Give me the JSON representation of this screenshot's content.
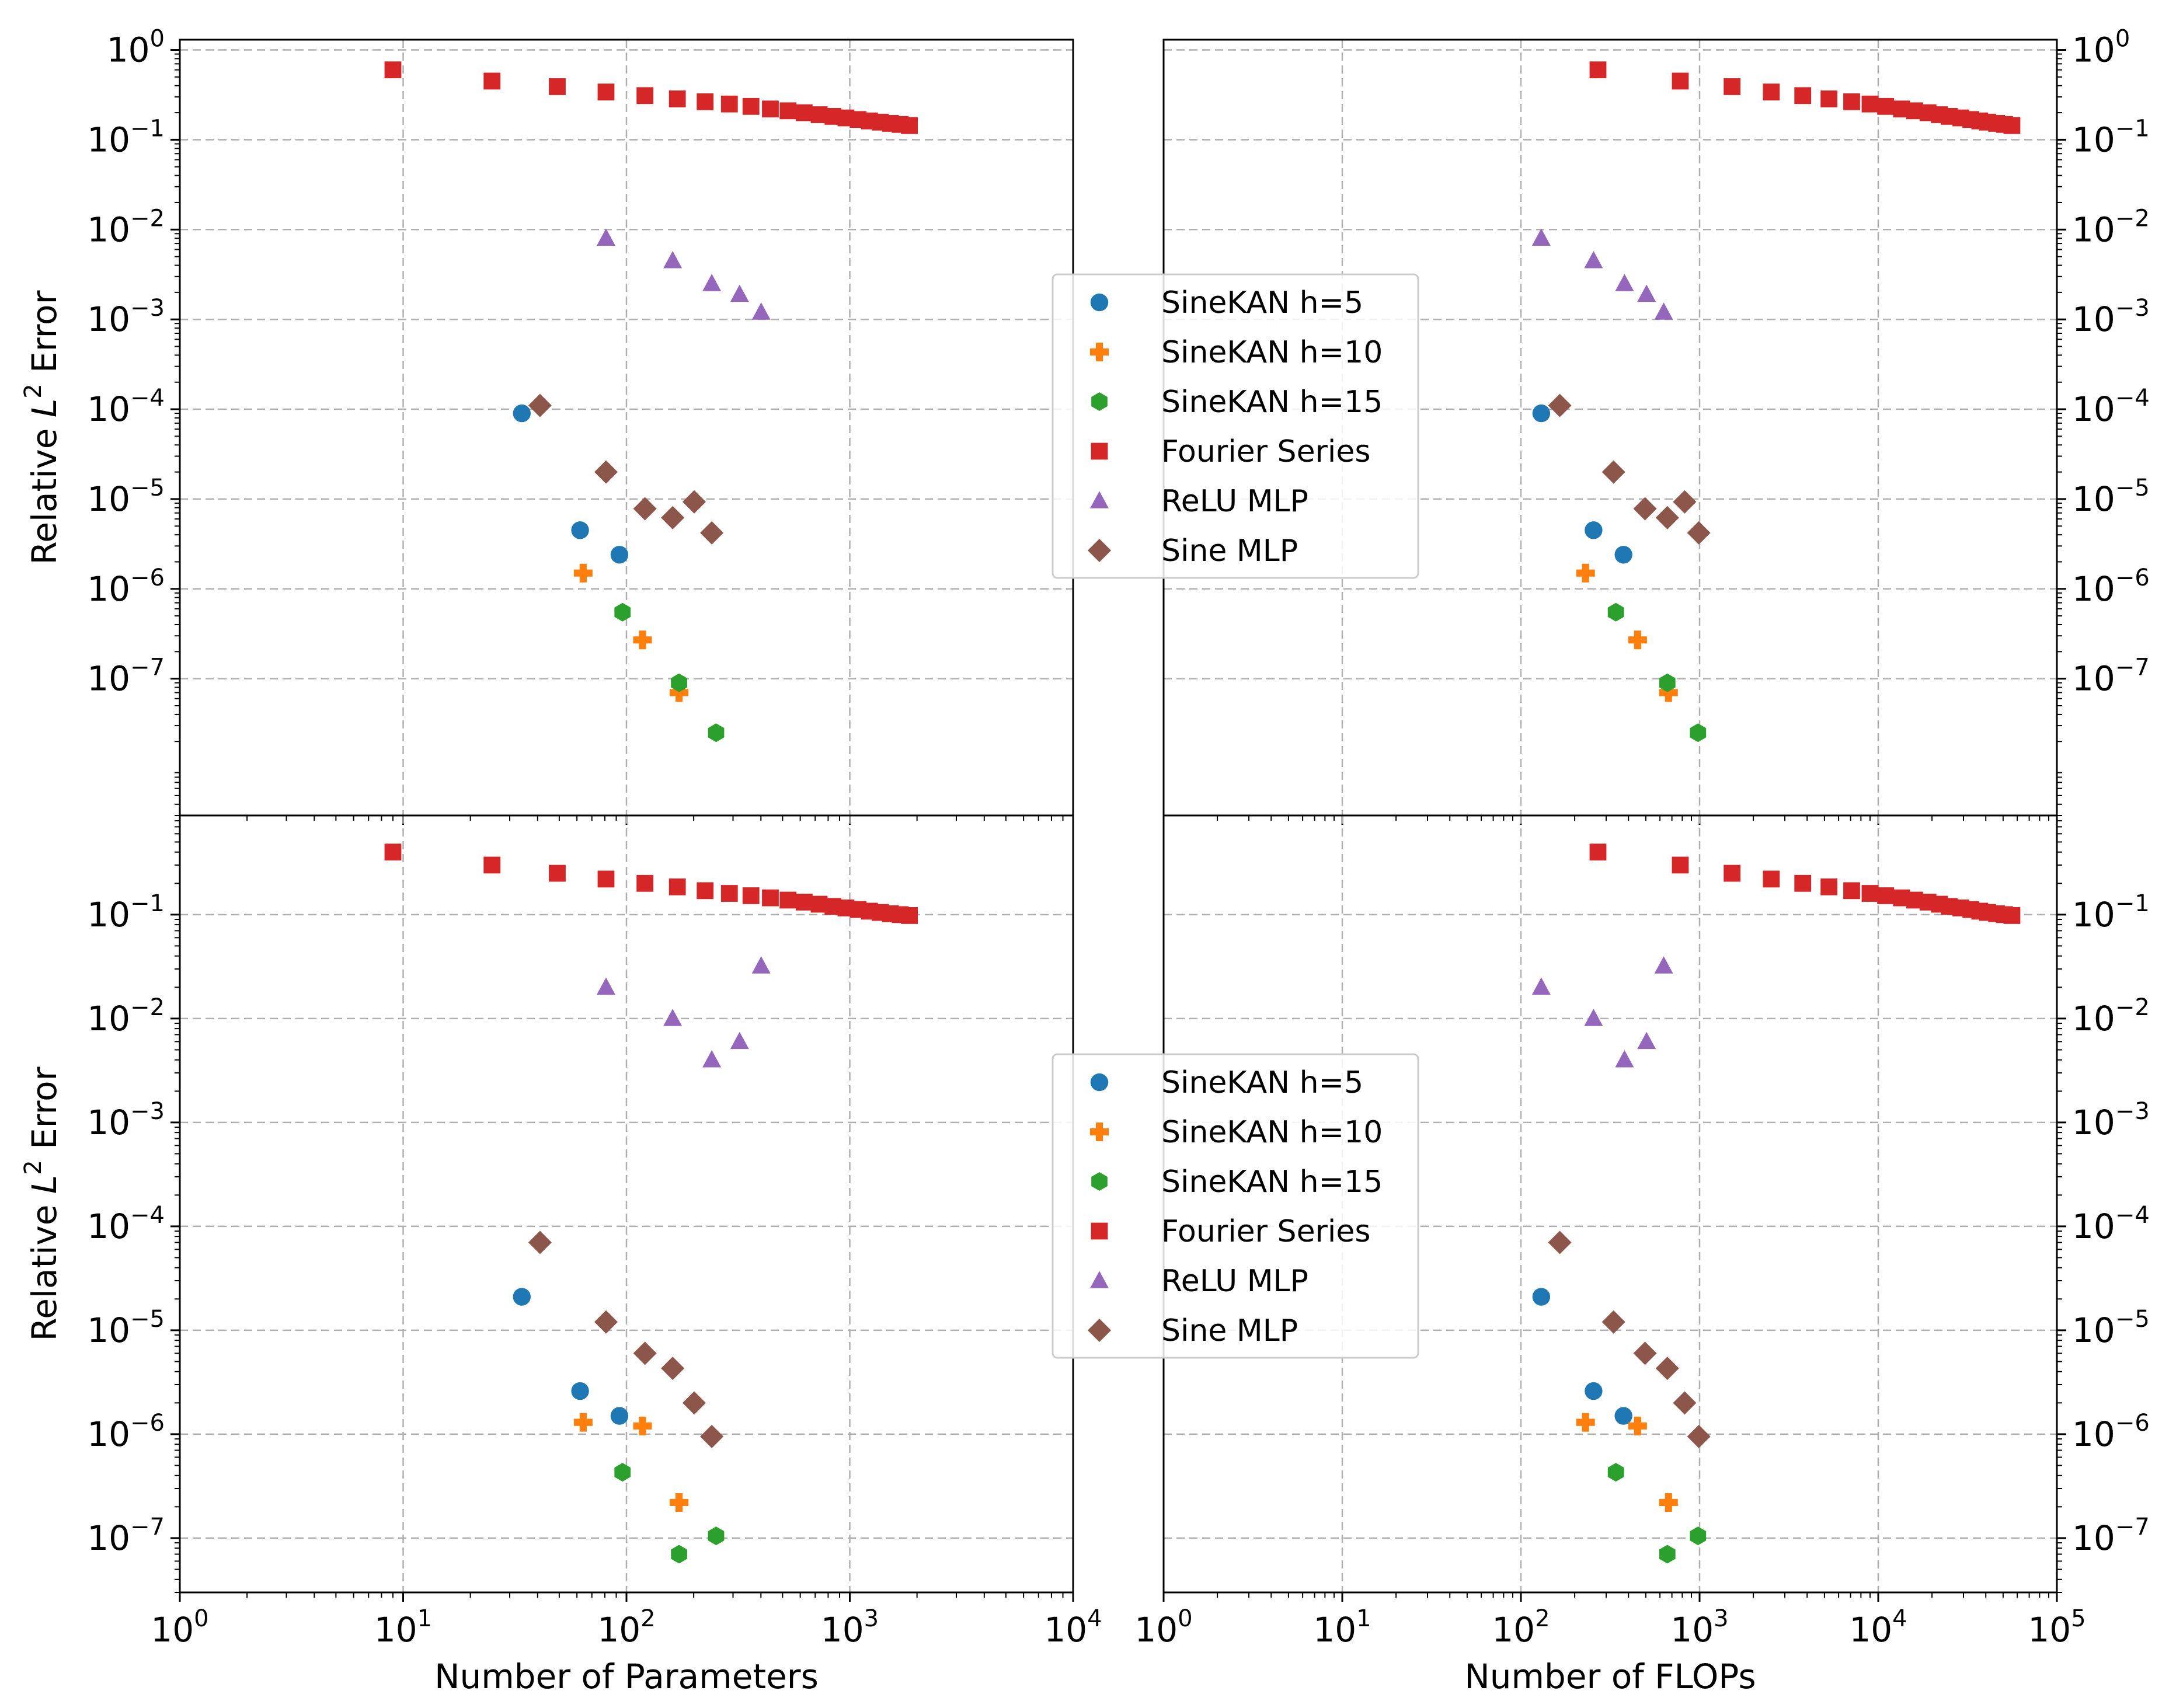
{
  "chart_data": [
    {
      "type": "scatter",
      "panel": "top-left",
      "xscale": "log",
      "yscale": "log",
      "xlim": [
        1,
        10000
      ],
      "ylim": [
        3e-09,
        1.3
      ],
      "xlabel": "",
      "ylabel": "Relative L^2 Error",
      "grid": true,
      "series": [
        {
          "name": "SineKAN h=5",
          "x": [
            34,
            62,
            93
          ],
          "y": [
            9e-05,
            4.5e-06,
            2.4e-06
          ]
        },
        {
          "name": "SineKAN h=10",
          "x": [
            64,
            118,
            172
          ],
          "y": [
            1.5e-06,
            2.7e-07,
            7e-08
          ]
        },
        {
          "name": "SineKAN h=15",
          "x": [
            96,
            172,
            252
          ],
          "y": [
            5.5e-07,
            9e-08,
            2.5e-08
          ]
        },
        {
          "name": "Fourier Series",
          "x": [
            9,
            25,
            49,
            81,
            121,
            169,
            225,
            289,
            361,
            441,
            529,
            625,
            729,
            841,
            961,
            1089,
            1225,
            1369,
            1521,
            1681,
            1849
          ],
          "y": [
            0.6,
            0.45,
            0.39,
            0.34,
            0.31,
            0.285,
            0.265,
            0.25,
            0.235,
            0.22,
            0.21,
            0.2,
            0.19,
            0.182,
            0.175,
            0.168,
            0.162,
            0.157,
            0.152,
            0.148,
            0.144
          ]
        },
        {
          "name": "ReLU MLP",
          "x": [
            81,
            161,
            241,
            321,
            401
          ],
          "y": [
            0.008,
            0.0045,
            0.0025,
            0.0019,
            0.0012
          ]
        },
        {
          "name": "Sine MLP",
          "x": [
            41,
            81,
            121,
            161,
            201,
            241
          ],
          "y": [
            0.00011,
            2e-05,
            7.8e-06,
            6.2e-06,
            9.3e-06,
            4.2e-06
          ]
        }
      ]
    },
    {
      "type": "scatter",
      "panel": "top-right",
      "xscale": "log",
      "yscale": "log",
      "xlim": [
        1,
        100000
      ],
      "ylim": [
        3e-09,
        1.3
      ],
      "xlabel": "",
      "ylabel": "",
      "grid": true,
      "series": [
        {
          "name": "SineKAN h=5",
          "x": [
            130,
            255,
            375
          ],
          "y": [
            9e-05,
            4.5e-06,
            2.4e-06
          ]
        },
        {
          "name": "SineKAN h=10",
          "x": [
            230,
            450,
            670
          ],
          "y": [
            1.5e-06,
            2.7e-07,
            7e-08
          ]
        },
        {
          "name": "SineKAN h=15",
          "x": [
            340,
            660,
            980
          ],
          "y": [
            5.5e-07,
            9e-08,
            2.5e-08
          ]
        },
        {
          "name": "Fourier Series",
          "x": [
            270,
            780,
            1520,
            2520,
            3780,
            5300,
            7100,
            9000,
            11000,
            13500,
            16000,
            19000,
            22000,
            25000,
            29000,
            33000,
            37000,
            41000,
            46000,
            51000,
            56000
          ],
          "y": [
            0.6,
            0.45,
            0.39,
            0.34,
            0.31,
            0.285,
            0.265,
            0.25,
            0.235,
            0.22,
            0.21,
            0.2,
            0.19,
            0.182,
            0.175,
            0.168,
            0.162,
            0.157,
            0.152,
            0.148,
            0.144
          ]
        },
        {
          "name": "ReLU MLP",
          "x": [
            130,
            255,
            380,
            505,
            630
          ],
          "y": [
            0.008,
            0.0045,
            0.0025,
            0.0019,
            0.0012
          ]
        },
        {
          "name": "Sine MLP",
          "x": [
            165,
            330,
            495,
            660,
            825,
            990
          ],
          "y": [
            0.00011,
            2e-05,
            7.8e-06,
            6.2e-06,
            9.3e-06,
            4.2e-06
          ]
        }
      ]
    },
    {
      "type": "scatter",
      "panel": "bottom-left",
      "xscale": "log",
      "yscale": "log",
      "xlim": [
        1,
        10000
      ],
      "ylim": [
        3e-08,
        0.9
      ],
      "xlabel": "Number of Parameters",
      "ylabel": "Relative L^2 Error",
      "grid": true,
      "series": [
        {
          "name": "SineKAN h=5",
          "x": [
            34,
            62,
            93
          ],
          "y": [
            2.1e-05,
            2.6e-06,
            1.5e-06
          ]
        },
        {
          "name": "SineKAN h=10",
          "x": [
            64,
            118,
            172
          ],
          "y": [
            1.3e-06,
            1.2e-06,
            2.2e-07
          ]
        },
        {
          "name": "SineKAN h=15",
          "x": [
            96,
            172,
            252
          ],
          "y": [
            4.3e-07,
            7e-08,
            1.05e-07
          ]
        },
        {
          "name": "Fourier Series",
          "x": [
            9,
            25,
            49,
            81,
            121,
            169,
            225,
            289,
            361,
            441,
            529,
            625,
            729,
            841,
            961,
            1089,
            1225,
            1369,
            1521,
            1681,
            1849
          ],
          "y": [
            0.4,
            0.3,
            0.25,
            0.22,
            0.2,
            0.185,
            0.17,
            0.16,
            0.152,
            0.145,
            0.138,
            0.132,
            0.126,
            0.12,
            0.116,
            0.112,
            0.108,
            0.105,
            0.102,
            0.1,
            0.098
          ]
        },
        {
          "name": "ReLU MLP",
          "x": [
            81,
            161,
            241,
            321,
            401
          ],
          "y": [
            0.02,
            0.01,
            0.004,
            0.006,
            0.032
          ]
        },
        {
          "name": "Sine MLP",
          "x": [
            41,
            81,
            121,
            161,
            201,
            241
          ],
          "y": [
            7e-05,
            1.2e-05,
            6e-06,
            4.3e-06,
            2e-06,
            9.5e-07
          ]
        }
      ]
    },
    {
      "type": "scatter",
      "panel": "bottom-right",
      "xscale": "log",
      "yscale": "log",
      "xlim": [
        1,
        100000
      ],
      "ylim": [
        3e-08,
        0.9
      ],
      "xlabel": "Number of FLOPs",
      "ylabel": "",
      "grid": true,
      "series": [
        {
          "name": "SineKAN h=5",
          "x": [
            130,
            255,
            375
          ],
          "y": [
            2.1e-05,
            2.6e-06,
            1.5e-06
          ]
        },
        {
          "name": "SineKAN h=10",
          "x": [
            230,
            450,
            670
          ],
          "y": [
            1.3e-06,
            1.2e-06,
            2.2e-07
          ]
        },
        {
          "name": "SineKAN h=15",
          "x": [
            340,
            660,
            980
          ],
          "y": [
            4.3e-07,
            7e-08,
            1.05e-07
          ]
        },
        {
          "name": "Fourier Series",
          "x": [
            270,
            780,
            1520,
            2520,
            3780,
            5300,
            7100,
            9000,
            11000,
            13500,
            16000,
            19000,
            22000,
            25000,
            29000,
            33000,
            37000,
            41000,
            46000,
            51000,
            56000
          ],
          "y": [
            0.4,
            0.3,
            0.25,
            0.22,
            0.2,
            0.185,
            0.17,
            0.16,
            0.152,
            0.145,
            0.138,
            0.132,
            0.126,
            0.12,
            0.116,
            0.112,
            0.108,
            0.105,
            0.102,
            0.1,
            0.098
          ]
        },
        {
          "name": "ReLU MLP",
          "x": [
            130,
            255,
            380,
            505,
            630
          ],
          "y": [
            0.02,
            0.01,
            0.004,
            0.006,
            0.032
          ]
        },
        {
          "name": "Sine MLP",
          "x": [
            165,
            330,
            495,
            660,
            825,
            990
          ],
          "y": [
            7e-05,
            1.2e-05,
            6e-06,
            4.3e-06,
            2e-06,
            9.5e-07
          ]
        }
      ]
    }
  ],
  "series_style": [
    {
      "name": "SineKAN h=5",
      "color": "#1f77b4",
      "marker": "circle"
    },
    {
      "name": "SineKAN h=10",
      "color": "#ff7f0e",
      "marker": "plus"
    },
    {
      "name": "SineKAN h=15",
      "color": "#2ca02c",
      "marker": "hexagon"
    },
    {
      "name": "Fourier Series",
      "color": "#d62728",
      "marker": "square"
    },
    {
      "name": "ReLU MLP",
      "color": "#9467bd",
      "marker": "triangle"
    },
    {
      "name": "Sine MLP",
      "color": "#8c564b",
      "marker": "diamond"
    }
  ],
  "legend": {
    "placement": "center between columns",
    "entries": [
      "SineKAN h=5",
      "SineKAN h=10",
      "SineKAN h=15",
      "Fourier Series",
      "ReLU MLP",
      "Sine MLP"
    ]
  },
  "ticks": {
    "x_params": [
      {
        "base": "10",
        "exp": "0"
      },
      {
        "base": "10",
        "exp": "1"
      },
      {
        "base": "10",
        "exp": "2"
      },
      {
        "base": "10",
        "exp": "3"
      },
      {
        "base": "10",
        "exp": "4"
      }
    ],
    "x_flops": [
      {
        "base": "10",
        "exp": "0"
      },
      {
        "base": "10",
        "exp": "1"
      },
      {
        "base": "10",
        "exp": "2"
      },
      {
        "base": "10",
        "exp": "3"
      },
      {
        "base": "10",
        "exp": "4"
      },
      {
        "base": "10",
        "exp": "5"
      }
    ],
    "y_top": [
      {
        "base": "10",
        "exp": "0"
      },
      {
        "base": "10",
        "exp": "−1"
      },
      {
        "base": "10",
        "exp": "−2"
      },
      {
        "base": "10",
        "exp": "−3"
      },
      {
        "base": "10",
        "exp": "−4"
      },
      {
        "base": "10",
        "exp": "−5"
      },
      {
        "base": "10",
        "exp": "−6"
      },
      {
        "base": "10",
        "exp": "−7"
      }
    ],
    "y_bottom": [
      {
        "base": "10",
        "exp": "−1"
      },
      {
        "base": "10",
        "exp": "−2"
      },
      {
        "base": "10",
        "exp": "−3"
      },
      {
        "base": "10",
        "exp": "−4"
      },
      {
        "base": "10",
        "exp": "−5"
      },
      {
        "base": "10",
        "exp": "−6"
      },
      {
        "base": "10",
        "exp": "−7"
      }
    ]
  },
  "labels": {
    "ylabel_prefix": "Relative ",
    "ylabel_var": "L",
    "ylabel_sup": "2",
    "ylabel_suffix": " Error",
    "xlabel_params": "Number of Parameters",
    "xlabel_flops": "Number of FLOPs"
  }
}
